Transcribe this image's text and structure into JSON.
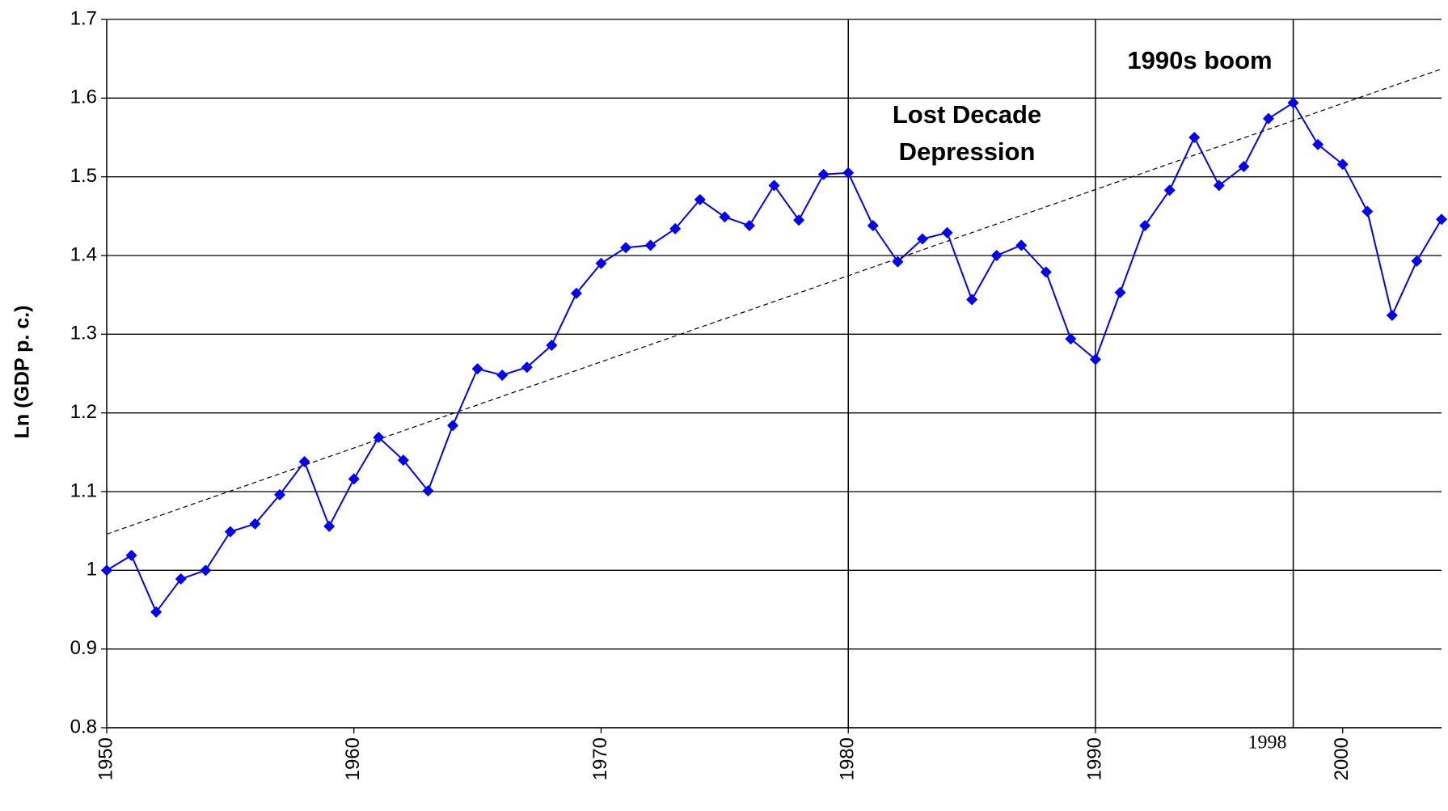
{
  "chart_data": {
    "type": "line",
    "y_label": "Ln (GDP p. c.)",
    "x": [
      1950,
      1951,
      1952,
      1953,
      1954,
      1955,
      1956,
      1957,
      1958,
      1959,
      1960,
      1961,
      1962,
      1963,
      1964,
      1965,
      1966,
      1967,
      1968,
      1969,
      1970,
      1971,
      1972,
      1973,
      1974,
      1975,
      1976,
      1977,
      1978,
      1979,
      1980,
      1981,
      1982,
      1983,
      1984,
      1985,
      1986,
      1987,
      1988,
      1989,
      1990,
      1991,
      1992,
      1993,
      1994,
      1995,
      1996,
      1997,
      1998,
      1999,
      2000,
      2001,
      2002,
      2003,
      2004
    ],
    "series": [
      {
        "color": "#0000ff",
        "values": [
          1.0,
          1.019,
          0.947,
          0.989,
          1.0,
          1.049,
          1.059,
          1.096,
          1.138,
          1.056,
          1.116,
          1.169,
          1.14,
          1.101,
          1.184,
          1.256,
          1.248,
          1.258,
          1.286,
          1.352,
          1.39,
          1.41,
          1.413,
          1.434,
          1.471,
          1.449,
          1.438,
          1.489,
          1.445,
          1.503,
          1.505,
          1.438,
          1.392,
          1.421,
          1.429,
          1.344,
          1.4,
          1.413,
          1.379,
          1.294,
          1.268,
          1.353,
          1.438,
          1.483,
          1.55,
          1.489,
          1.513,
          1.574,
          1.594,
          1.541,
          1.516,
          1.456,
          1.324,
          1.393,
          1.446
        ]
      }
    ],
    "trend": {
      "color": "#000000",
      "x": [
        1950,
        2004
      ],
      "values": [
        1.046,
        1.637
      ]
    },
    "vlines": [
      1980,
      1990,
      1998
    ],
    "annotations": [
      {
        "lines": [
          "Lost Decade",
          "Depression"
        ]
      },
      {
        "lines": [
          "1990s boom"
        ]
      }
    ],
    "xlim": [
      1950,
      2004
    ],
    "xticks": [
      1950,
      1960,
      1970,
      1980,
      1990,
      2000
    ],
    "ylim": [
      0.8,
      1.7
    ],
    "yticks": [
      0.8,
      0.9,
      1,
      1.1,
      1.2,
      1.3,
      1.4,
      1.5,
      1.6,
      1.7
    ],
    "grid": true
  }
}
